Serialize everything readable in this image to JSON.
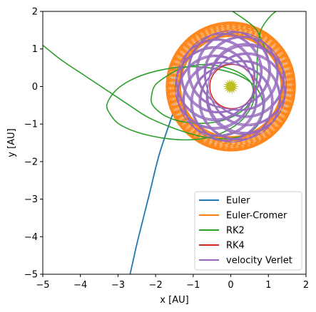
{
  "chart_data": {
    "type": "line",
    "title": "",
    "xlabel": "x [AU]",
    "ylabel": "y [AU]",
    "xlim": [
      -5,
      2
    ],
    "ylim": [
      -5,
      2
    ],
    "xticks": [
      -5,
      -4,
      -3,
      -2,
      -1,
      0,
      1,
      2
    ],
    "yticks": [
      -5,
      -4,
      -3,
      -2,
      -1,
      0,
      1,
      2
    ],
    "xtick_labels": [
      "−5",
      "−4",
      "−3",
      "−2",
      "−1",
      "0",
      "1",
      "2"
    ],
    "ytick_labels": [
      "−5",
      "−4",
      "−3",
      "−2",
      "−1",
      "0",
      "1",
      "2"
    ],
    "grid": false,
    "legend_position": "lower-right",
    "star": {
      "label": "",
      "x": 0,
      "y": 0,
      "color": "#bcbd22"
    },
    "series": [
      {
        "name": "Euler",
        "color": "#1f77b4",
        "kind": "escape",
        "x": [
          -1.55,
          -1.9,
          -2.15,
          -2.35,
          -2.5,
          -2.6,
          -2.68
        ],
        "y": [
          -0.75,
          -1.8,
          -2.8,
          -3.6,
          -4.2,
          -4.65,
          -5.0
        ]
      },
      {
        "name": "Euler-Cromer",
        "color": "#ff7f0e",
        "kind": "precessing",
        "a": 1.6,
        "b": 1.46,
        "r_min": 1.33,
        "r_max": 1.72
      },
      {
        "name": "RK2",
        "color": "#2ca02c",
        "kind": "loops",
        "x": [
          -5.0,
          -4.5,
          -3.9,
          -3.3,
          -2.7,
          -2.2,
          -1.6,
          -1.0,
          -0.5,
          0.0,
          0.4,
          0.7,
          0.85,
          0.82,
          0.6,
          0.2,
          -0.3,
          -0.8,
          -1.3,
          -1.8,
          -2.3,
          -2.7,
          -3.0,
          -3.2,
          -3.3,
          -3.2,
          -3.0,
          -2.6,
          -2.1,
          -1.6,
          -1.1,
          -0.6,
          -0.2,
          0.2,
          0.45,
          0.6,
          0.6,
          0.5,
          0.2,
          -0.2,
          -0.6,
          -1.0,
          -1.4,
          -1.7,
          -2.0,
          -2.1,
          -2.1,
          -1.9,
          -1.6,
          -1.2,
          -0.7,
          -0.2,
          0.2,
          0.5,
          0.65,
          0.7,
          0.7,
          0.72,
          0.8,
          0.95,
          1.1,
          1.2,
          1.25,
          1.28
        ],
        "y": [
          1.1,
          0.7,
          0.3,
          -0.1,
          -0.5,
          -0.82,
          -1.08,
          -1.28,
          -1.38,
          -1.38,
          -1.28,
          -1.05,
          -0.7,
          -0.3,
          0.05,
          0.3,
          0.45,
          0.52,
          0.52,
          0.45,
          0.32,
          0.15,
          -0.05,
          -0.28,
          -0.52,
          -0.75,
          -0.98,
          -1.18,
          -1.32,
          -1.4,
          -1.42,
          -1.36,
          -1.22,
          -0.98,
          -0.7,
          -0.4,
          -0.1,
          0.15,
          0.38,
          0.52,
          0.58,
          0.56,
          0.45,
          0.28,
          0.05,
          -0.2,
          -0.45,
          -0.68,
          -0.85,
          -0.95,
          -0.98,
          -0.9,
          -0.72,
          -0.45,
          -0.1,
          0.3,
          0.7,
          1.1,
          1.5,
          1.75,
          1.92,
          2.0,
          2.05,
          2.1
        ],
        "extra_x": [
          -0.1,
          0.6,
          0.85,
          1.0
        ],
        "extra_y": [
          2.1,
          1.6,
          1.15,
          0.75
        ]
      },
      {
        "name": "RK4",
        "color": "#d62728",
        "kind": "orbit",
        "a": 0.58,
        "b": 0.58,
        "r_min": 0.56,
        "r_max": 0.62
      },
      {
        "name": "velocity Verlet",
        "color": "#9467bd",
        "kind": "precessing",
        "a": 1.45,
        "b": 1.3,
        "r_min": 0.6,
        "r_max": 1.48
      }
    ]
  }
}
